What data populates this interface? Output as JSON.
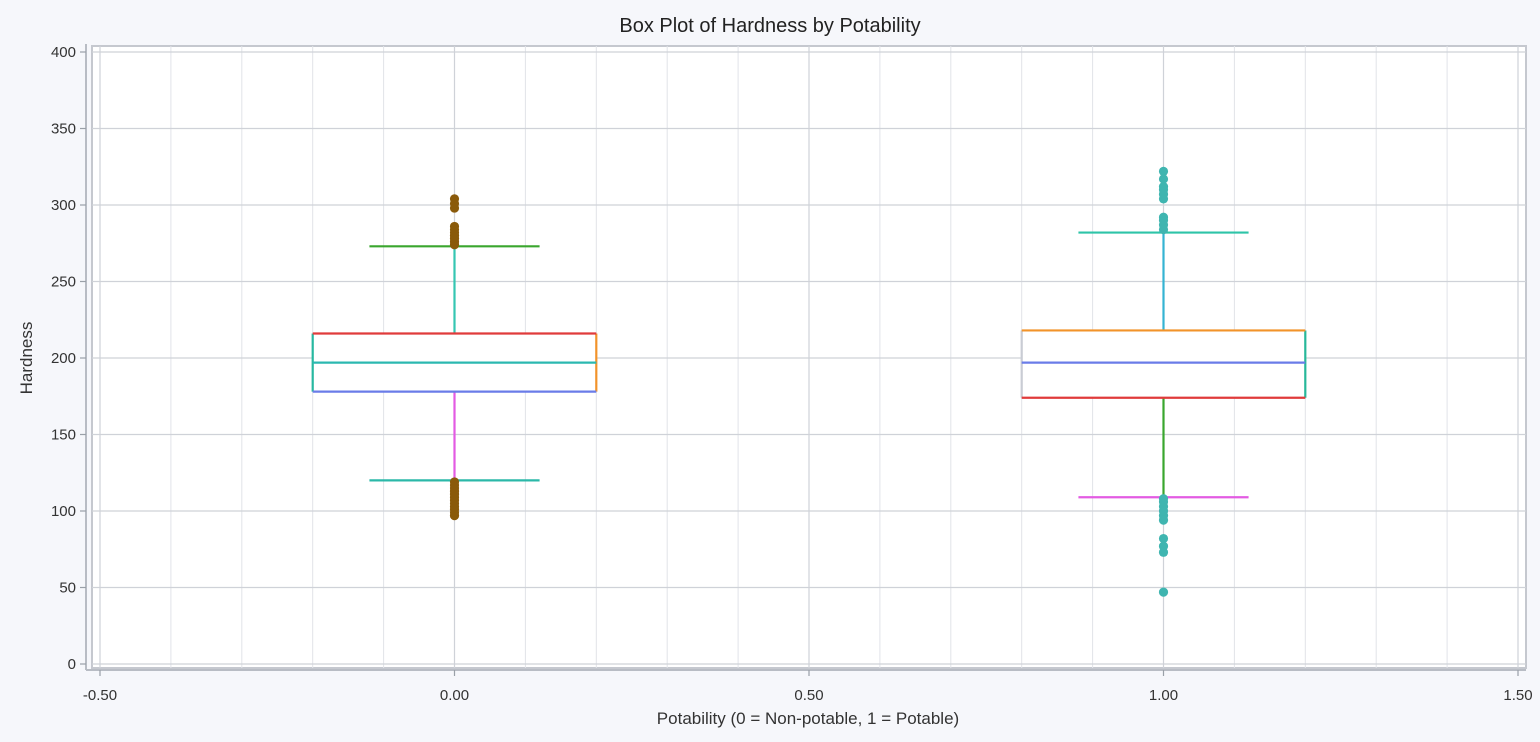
{
  "chart_data": {
    "type": "box",
    "title": "Box Plot of Hardness by Potability",
    "xlabel": "Potability (0 = Non-potable, 1 = Potable)",
    "ylabel": "Hardness",
    "xlim": [
      -0.5,
      1.5
    ],
    "ylim": [
      0,
      400
    ],
    "xticks": [
      -0.5,
      0.0,
      0.5,
      1.0,
      1.5
    ],
    "xtick_labels": [
      "-0.50",
      "0.00",
      "0.50",
      "1.00",
      "1.50"
    ],
    "yticks": [
      0,
      50,
      100,
      150,
      200,
      250,
      300,
      350,
      400
    ],
    "ytick_labels": [
      "0",
      "50",
      "100",
      "150",
      "200",
      "250",
      "300",
      "350",
      "400"
    ],
    "grid": true,
    "boxes": [
      {
        "x": 0,
        "box_width": 0.4,
        "whisker_cap_width": 0.24,
        "q1": 178,
        "median": 197,
        "q3": 216,
        "whisker_low": 120,
        "whisker_high": 273,
        "outlier_color": "#8a5a0a",
        "colors": {
          "top": "#e03b3b",
          "bottom": "#6a7ce8",
          "median": "#2bb8b0",
          "left": "#27b8a0",
          "right": "#f2932a",
          "upper_whisker": "#35c6b2",
          "lower_whisker": "#e35be3",
          "upper_cap": "#3aa62e",
          "lower_cap": "#2bb8a8"
        },
        "outliers": [
          97,
          99,
          101,
          103,
          105,
          107,
          109,
          111,
          113,
          115,
          117,
          119,
          274,
          276,
          278,
          280,
          282,
          284,
          286,
          298,
          301,
          304
        ]
      },
      {
        "x": 1,
        "box_width": 0.4,
        "whisker_cap_width": 0.24,
        "q1": 174,
        "median": 197,
        "q3": 218,
        "whisker_low": 109,
        "whisker_high": 282,
        "outlier_color": "#3fb5b0",
        "colors": {
          "top": "#f2932a",
          "bottom": "#e03b3b",
          "median": "#6a7ce8",
          "left": "#c9ccd4",
          "right": "#27b89a",
          "upper_whisker": "#35b3d3",
          "lower_whisker": "#3aa62e",
          "upper_cap": "#2ec4a8",
          "lower_cap": "#e35be3"
        },
        "outliers": [
          47,
          73,
          77,
          82,
          94,
          97,
          100,
          103,
          106,
          108,
          284,
          287,
          290,
          292,
          304,
          307,
          310,
          312,
          317,
          322
        ]
      }
    ]
  }
}
